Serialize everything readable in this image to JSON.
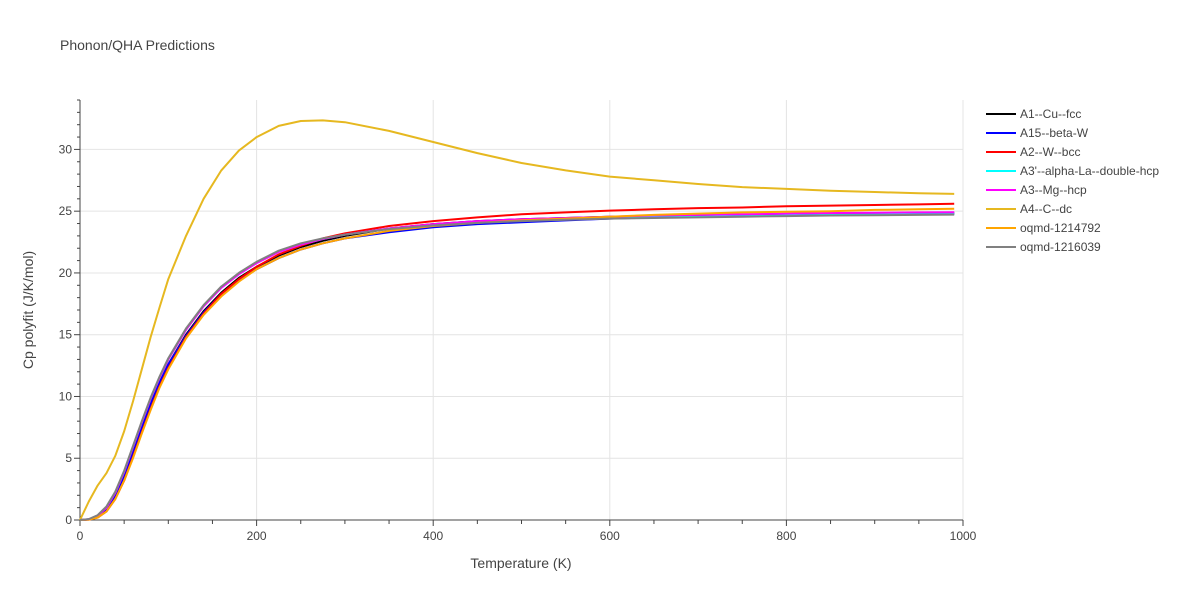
{
  "chart_data": {
    "type": "line",
    "title": "Phonon/QHA Predictions",
    "xlabel": "Temperature (K)",
    "ylabel": "Cp polyfit (J/K/mol)",
    "xlim": [
      0,
      1000
    ],
    "ylim": [
      0,
      34
    ],
    "xticks": [
      0,
      200,
      400,
      600,
      800,
      1000
    ],
    "yticks": [
      0,
      5,
      10,
      15,
      20,
      25,
      30
    ],
    "grid": true,
    "legend_position": "top-right",
    "x": [
      0,
      10,
      20,
      30,
      40,
      50,
      60,
      70,
      80,
      90,
      100,
      120,
      140,
      160,
      180,
      200,
      225,
      250,
      275,
      300,
      350,
      400,
      450,
      500,
      550,
      600,
      650,
      700,
      750,
      800,
      850,
      900,
      950,
      990
    ],
    "series": [
      {
        "name": "A1--Cu--fcc",
        "color": "#000000",
        "values": [
          0,
          0.05,
          0.3,
          0.9,
          2.0,
          3.6,
          5.5,
          7.5,
          9.4,
          11.1,
          12.6,
          15.0,
          16.9,
          18.4,
          19.6,
          20.5,
          21.4,
          22.1,
          22.6,
          23.0,
          23.6,
          23.95,
          24.2,
          24.35,
          24.45,
          24.55,
          24.6,
          24.65,
          24.7,
          24.75,
          24.8,
          24.82,
          24.85,
          24.87
        ]
      },
      {
        "name": "A15--beta-W",
        "color": "#0000ff",
        "values": [
          0,
          0.05,
          0.3,
          0.9,
          2.0,
          3.6,
          5.5,
          7.5,
          9.4,
          11.1,
          12.6,
          14.9,
          16.8,
          18.3,
          19.4,
          20.3,
          21.2,
          21.9,
          22.4,
          22.8,
          23.3,
          23.7,
          23.95,
          24.1,
          24.25,
          24.4,
          24.5,
          24.55,
          24.6,
          24.65,
          24.7,
          24.72,
          24.75,
          24.77
        ]
      },
      {
        "name": "A2--W--bcc",
        "color": "#ff0000",
        "values": [
          0,
          0.03,
          0.2,
          0.7,
          1.7,
          3.2,
          5.1,
          7.1,
          9.0,
          10.8,
          12.3,
          14.8,
          16.7,
          18.3,
          19.5,
          20.5,
          21.5,
          22.2,
          22.8,
          23.2,
          23.8,
          24.2,
          24.5,
          24.75,
          24.9,
          25.05,
          25.15,
          25.25,
          25.3,
          25.4,
          25.45,
          25.5,
          25.55,
          25.6
        ]
      },
      {
        "name": "A3'--alpha-La--double-hcp",
        "color": "#00ffff",
        "values": [
          0,
          0.06,
          0.35,
          1.0,
          2.2,
          3.9,
          5.9,
          7.9,
          9.8,
          11.5,
          13.0,
          15.4,
          17.3,
          18.8,
          19.9,
          20.8,
          21.7,
          22.3,
          22.75,
          23.1,
          23.6,
          23.9,
          24.1,
          24.25,
          24.35,
          24.45,
          24.5,
          24.55,
          24.6,
          24.65,
          24.7,
          24.72,
          24.75,
          24.77
        ]
      },
      {
        "name": "A3--Mg--hcp",
        "color": "#ff00ff",
        "values": [
          0,
          0.06,
          0.35,
          1.0,
          2.2,
          3.9,
          5.9,
          7.9,
          9.8,
          11.5,
          13.0,
          15.4,
          17.3,
          18.8,
          19.9,
          20.8,
          21.7,
          22.3,
          22.75,
          23.1,
          23.6,
          23.95,
          24.2,
          24.35,
          24.45,
          24.55,
          24.65,
          24.7,
          24.75,
          24.8,
          24.85,
          24.88,
          24.9,
          24.92
        ]
      },
      {
        "name": "A4--C--dc",
        "color": "#e6b820",
        "values": [
          0,
          1.5,
          2.8,
          3.8,
          5.2,
          7.2,
          9.6,
          12.2,
          14.8,
          17.2,
          19.5,
          23.0,
          26.0,
          28.3,
          29.9,
          31.0,
          31.9,
          32.3,
          32.35,
          32.2,
          31.5,
          30.6,
          29.7,
          28.9,
          28.3,
          27.8,
          27.5,
          27.2,
          26.95,
          26.8,
          26.65,
          26.55,
          26.45,
          26.4
        ]
      },
      {
        "name": "oqmd-1214792",
        "color": "#ffa500",
        "values": [
          0,
          0.03,
          0.2,
          0.7,
          1.7,
          3.2,
          5.0,
          7.0,
          8.9,
          10.7,
          12.2,
          14.7,
          16.6,
          18.1,
          19.3,
          20.3,
          21.2,
          21.9,
          22.4,
          22.8,
          23.4,
          23.8,
          24.05,
          24.25,
          24.4,
          24.55,
          24.7,
          24.8,
          24.9,
          24.95,
          25.0,
          25.1,
          25.15,
          25.2
        ]
      },
      {
        "name": "oqmd-1216039",
        "color": "#808080",
        "values": [
          0,
          0.07,
          0.4,
          1.1,
          2.3,
          4.0,
          6.0,
          8.0,
          9.9,
          11.6,
          13.1,
          15.5,
          17.4,
          18.9,
          20.0,
          20.9,
          21.8,
          22.4,
          22.8,
          23.1,
          23.55,
          23.85,
          24.05,
          24.2,
          24.3,
          24.4,
          24.45,
          24.5,
          24.55,
          24.6,
          24.65,
          24.67,
          24.7,
          24.72
        ]
      }
    ]
  }
}
